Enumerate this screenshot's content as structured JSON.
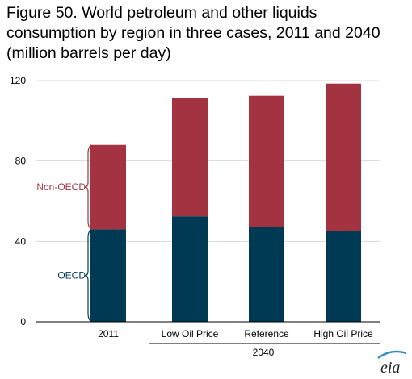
{
  "title_lines": [
    "Figure 50. World petroleum and other liquids",
    "consumption by region in three cases, 2011 and 2040",
    "(million barrels per day)"
  ],
  "colors": {
    "oecd": "#003953",
    "non_oecd": "#a33340",
    "grid": "#d9d9d9",
    "axis": "#000000"
  },
  "group_label": "2040",
  "logo_text": "eia",
  "chart_data": {
    "type": "bar",
    "stacked": true,
    "title": "Figure 50. World petroleum and other liquids consumption by region in three cases, 2011 and 2040 (million barrels per day)",
    "categories": [
      "2011",
      "Low Oil Price",
      "Reference",
      "High Oil Price"
    ],
    "series": [
      {
        "name": "OECD",
        "values": [
          46,
          52.5,
          47,
          45
        ]
      },
      {
        "name": "Non-OECD",
        "values": [
          42,
          59,
          65.5,
          73.5
        ]
      }
    ],
    "ylim": [
      0,
      120
    ],
    "yticks": [
      0,
      40,
      80,
      120
    ],
    "grid": true,
    "legend": "inline-left"
  }
}
